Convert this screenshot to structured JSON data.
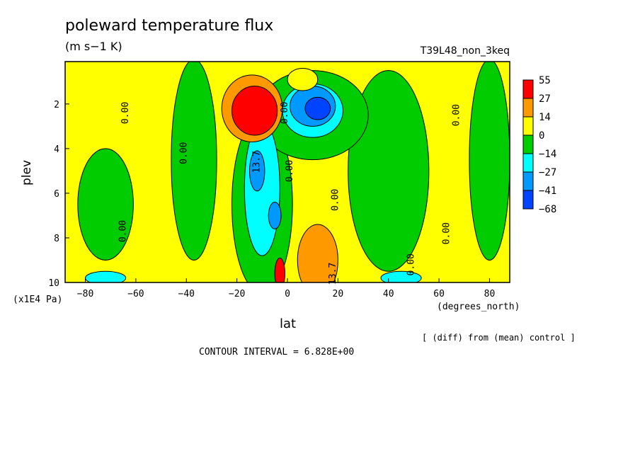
{
  "chart_data": {
    "type": "heatmap",
    "title": "poleward temperature flux",
    "units": "(m s−1 K)",
    "run_label": "T39L48_non_3keq",
    "xlabel": "lat",
    "xunits": "(degrees_north)",
    "ylabel": "plev",
    "yunits": "(x1E4 Pa)",
    "footnote": "[ (diff) from (mean) control ]",
    "contour_interval": "CONTOUR INTERVAL = 6.828E+00",
    "xlim": [
      -88,
      88
    ],
    "ylim": [
      10,
      0.1
    ],
    "x_ticks": [
      -80,
      -60,
      -40,
      -20,
      0,
      20,
      40,
      60,
      80
    ],
    "x_tick_labels": [
      "−80",
      "−60",
      "−40",
      "−20",
      "0",
      "20",
      "40",
      "60",
      "80"
    ],
    "y_ticks": [
      2,
      4,
      6,
      8,
      10
    ],
    "y_tick_labels": [
      "2",
      "4",
      "6",
      "8",
      "10"
    ],
    "colorbar": {
      "labels": [
        "55",
        "27",
        "14",
        "0",
        "−14",
        "−27",
        "−41",
        "−68"
      ],
      "colors": [
        "#ff0000",
        "#ff9900",
        "#ffff00",
        "#00cc00",
        "#00ffff",
        "#0099ff",
        "#0044ff"
      ]
    },
    "contour_labels": [
      {
        "text": "0.00",
        "lat": -63,
        "plev": 2.4
      },
      {
        "text": "0.00",
        "lat": -40,
        "plev": 4.2
      },
      {
        "text": "0.00",
        "lat": -64,
        "plev": 7.7
      },
      {
        "text": "0.00",
        "lat": 0,
        "plev": 2.4
      },
      {
        "text": "0.00",
        "lat": 2,
        "plev": 5.0
      },
      {
        "text": "0.00",
        "lat": 20,
        "plev": 6.3
      },
      {
        "text": "0.00",
        "lat": 68,
        "plev": 2.5
      },
      {
        "text": "0.00",
        "lat": 64,
        "plev": 7.8
      },
      {
        "text": "0.00",
        "lat": 50,
        "plev": 9.2
      },
      {
        "text": "13.7",
        "lat": -11,
        "plev": 4.6
      },
      {
        "text": "13.7",
        "lat": 19,
        "plev": 9.6
      }
    ],
    "field_regions": [
      {
        "level": "0 to 14",
        "color": "#ffff00",
        "shape": "background"
      },
      {
        "level": "-14 to 0",
        "color": "#00cc00",
        "lat": -72,
        "plev": 6.5,
        "rx": 11,
        "ry": 2.5
      },
      {
        "level": "-14 to 0",
        "color": "#00cc00",
        "lat": -37,
        "plev": 4.5,
        "rx": 9,
        "ry": 4.5
      },
      {
        "level": "-14 to 0",
        "color": "#00cc00",
        "lat": 40,
        "plev": 5.0,
        "rx": 16,
        "ry": 4.5
      },
      {
        "level": "-14 to 0",
        "color": "#00cc00",
        "lat": 80,
        "plev": 4.5,
        "rx": 8,
        "ry": 4.5
      },
      {
        "level": "-14 to 0",
        "color": "#00cc00",
        "lat": -10,
        "plev": 6.5,
        "rx": 12,
        "ry": 4.0
      },
      {
        "level": "-14 to 0",
        "color": "#00cc00",
        "lat": 10,
        "plev": 2.5,
        "rx": 22,
        "ry": 2.0
      },
      {
        "level": "-27 to -14",
        "color": "#00ffff",
        "lat": -10,
        "plev": 5.8,
        "rx": 7,
        "ry": 3.0
      },
      {
        "level": "-27 to -14",
        "color": "#00ffff",
        "lat": 10,
        "plev": 2.3,
        "rx": 12,
        "ry": 1.2
      },
      {
        "level": "-41 to -27",
        "color": "#0099ff",
        "lat": -12,
        "plev": 5.0,
        "rx": 3,
        "ry": 0.9
      },
      {
        "level": "-41 to -27",
        "color": "#0099ff",
        "lat": -5,
        "plev": 7.0,
        "rx": 2.5,
        "ry": 0.6
      },
      {
        "level": "-41 to -27",
        "color": "#0099ff",
        "lat": 10,
        "plev": 2.1,
        "rx": 9,
        "ry": 0.9
      },
      {
        "level": "-68 to -41",
        "color": "#0044ff",
        "lat": 12,
        "plev": 2.2,
        "rx": 5,
        "ry": 0.5
      },
      {
        "level": "0 to 14",
        "color": "#ffff00",
        "lat": 6,
        "plev": 0.9,
        "rx": 6,
        "ry": 0.5
      },
      {
        "level": "14 to 27",
        "color": "#ff9900",
        "lat": -14,
        "plev": 2.2,
        "rx": 12,
        "ry": 1.5
      },
      {
        "level": "27 to 55",
        "color": "#ff0000",
        "lat": -13,
        "plev": 2.3,
        "rx": 9,
        "ry": 1.1
      },
      {
        "level": "14 to 27",
        "color": "#ff9900",
        "lat": 12,
        "plev": 9.0,
        "rx": 8,
        "ry": 1.6
      },
      {
        "level": "27 to 55",
        "color": "#ff0000",
        "lat": -3,
        "plev": 9.6,
        "rx": 2,
        "ry": 0.7
      },
      {
        "level": "-27 to -14",
        "color": "#00ffff",
        "lat": 45,
        "plev": 9.8,
        "rx": 8,
        "ry": 0.3
      },
      {
        "level": "-27 to -14",
        "color": "#00ffff",
        "lat": -72,
        "plev": 9.8,
        "rx": 8,
        "ry": 0.3
      }
    ]
  }
}
